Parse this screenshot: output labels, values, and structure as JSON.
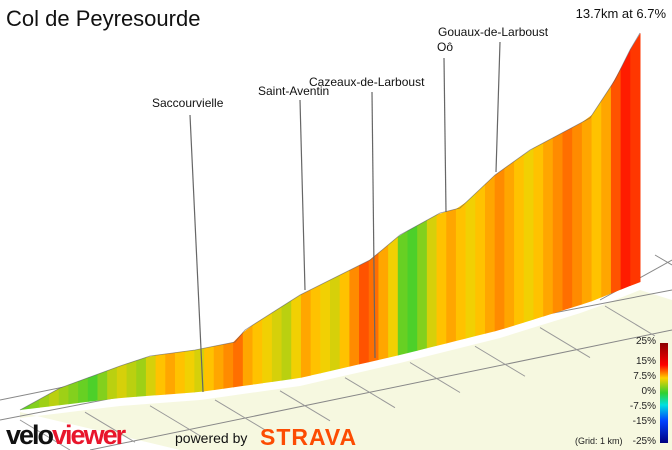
{
  "title": "Col de Peyresourde",
  "summary": "13.7km at 6.7%",
  "branding": {
    "logo_left": "velo",
    "logo_right": "viewer",
    "powered_by": "powered by",
    "strava": "STRAVA"
  },
  "chart_data": {
    "type": "area",
    "title": "Col de Peyresourde",
    "distance_km": 13.7,
    "average_gradient_percent": 6.7,
    "grid": "(Grid: 1 km)",
    "annotations": [
      "Saccourvielle",
      "Saint-Aventin",
      "Cazeaux-de-Larboust",
      "Oô",
      "Gouaux-de-Larboust"
    ],
    "legend": {
      "placement": "bottom-right",
      "ticks": [
        "25%",
        "15%",
        "7.5%",
        "0%",
        "-7.5%",
        "-15%",
        "-25%"
      ],
      "colors": {
        "25": "#8b0000",
        "15": "#ff0000",
        "7.5": "#ffd000",
        "0": "#30d030",
        "-7.5": "#00e0e0",
        "-15": "#0040ff",
        "-25": "#000080"
      }
    },
    "gradient_percent": [
      2,
      3,
      4,
      5,
      4,
      3,
      2,
      1,
      3,
      5,
      6,
      5,
      4,
      6,
      8,
      9,
      8,
      7,
      6,
      8,
      9,
      10,
      11,
      9,
      8,
      7,
      6,
      5,
      7,
      9,
      8,
      7,
      6,
      8,
      10,
      12,
      11,
      9,
      7,
      2,
      1,
      3,
      6,
      8,
      9,
      8,
      7,
      8,
      9,
      10,
      9,
      8,
      7,
      8,
      9,
      10,
      11,
      10,
      9,
      8,
      9,
      12,
      14,
      13
    ]
  }
}
